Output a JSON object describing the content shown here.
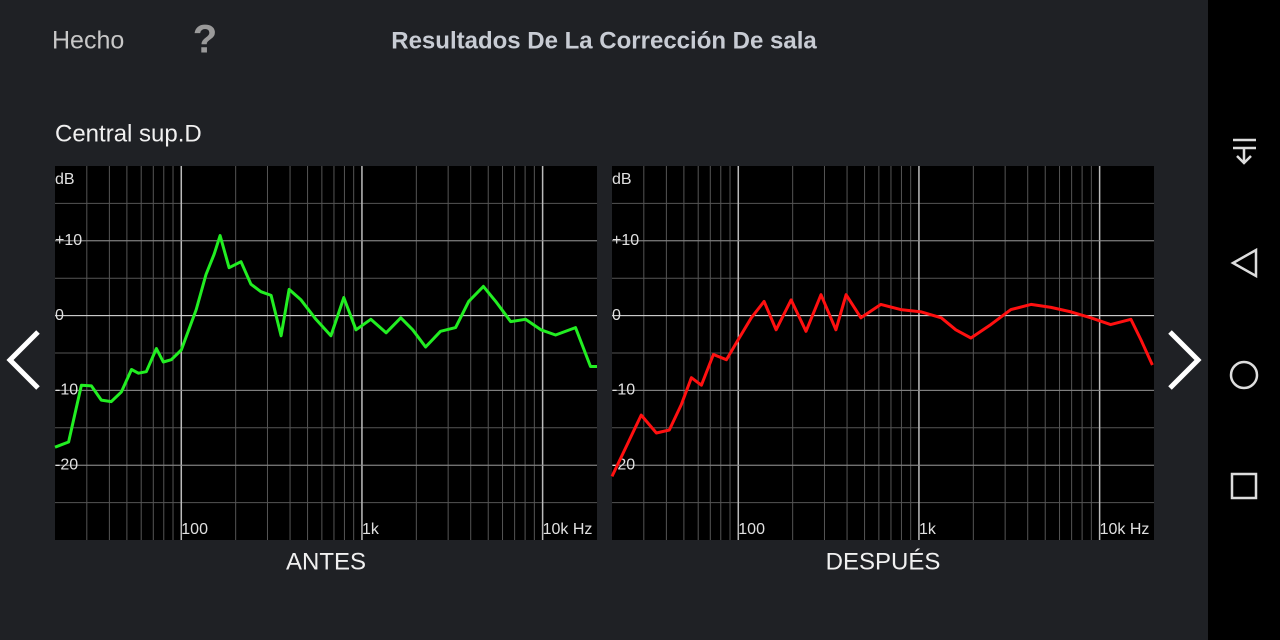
{
  "header": {
    "done": "Hecho",
    "help": "?",
    "title": "Resultados De La Corrección De sala"
  },
  "speaker": "Central sup.D",
  "chart_data": [
    {
      "type": "line",
      "title": "ANTES",
      "y_label": "dB",
      "color": "#22ee22",
      "x_scale": "log",
      "grid": true,
      "x": [
        20,
        23.8,
        28,
        31.8,
        36.1,
        41,
        46.6,
        53,
        57.9,
        64,
        72.8,
        79.5,
        88,
        100,
        121,
        137,
        152,
        164,
        184,
        214,
        243,
        276,
        314,
        357,
        395,
        460,
        556,
        673,
        794,
        927,
        1120,
        1360,
        1640,
        1910,
        2250,
        2720,
        3300,
        3900,
        4700,
        5500,
        6660,
        8040,
        9790,
        11800,
        15200,
        18400,
        20000
      ],
      "values": [
        -17.6,
        -16.9,
        -9.3,
        -9.4,
        -11.3,
        -11.5,
        -10.2,
        -7.2,
        -7.7,
        -7.5,
        -4.4,
        -6.2,
        -5.9,
        -4.6,
        0.8,
        5.5,
        8.2,
        10.7,
        6.4,
        7.2,
        4.2,
        3.2,
        2.7,
        -2.7,
        3.5,
        2.1,
        -0.5,
        -2.7,
        2.4,
        -1.9,
        -0.5,
        -2.3,
        -0.3,
        -1.9,
        -4.2,
        -2.1,
        -1.6,
        1.9,
        3.9,
        1.9,
        -0.8,
        -0.5,
        -1.9,
        -2.6,
        -1.6,
        -6.8,
        -6.8
      ],
      "xlim": [
        20,
        20000
      ],
      "ylim": [
        -30,
        20
      ],
      "xticks": [
        100,
        {
          "value": 1000,
          "label": "1k"
        },
        {
          "value": 10000,
          "label": "10k Hz"
        }
      ],
      "yticks": [
        {
          "value": 10,
          "label": "+10"
        },
        0,
        -10,
        -20
      ]
    },
    {
      "type": "line",
      "title": "DESPUÉS",
      "y_label": "dB",
      "color": "#ff1010",
      "x_scale": "log",
      "grid": true,
      "x": [
        20,
        24.2,
        29,
        35.2,
        41.5,
        48.4,
        55,
        62.5,
        72.8,
        86,
        100,
        118,
        139,
        162,
        196,
        237,
        287,
        347,
        395,
        477,
        616,
        794,
        1030,
        1330,
        1600,
        1940,
        2500,
        3230,
        4170,
        5380,
        6940,
        8950,
        11500,
        14900,
        16900,
        19600
      ],
      "values": [
        -21.5,
        -17.3,
        -13.3,
        -15.7,
        -15.3,
        -11.9,
        -8.3,
        -9.3,
        -5.2,
        -5.9,
        -3.2,
        -0.3,
        1.9,
        -1.9,
        2.1,
        -2.1,
        2.8,
        -1.9,
        2.8,
        -0.3,
        1.5,
        0.8,
        0.5,
        -0.3,
        -1.9,
        -3.0,
        -1.2,
        0.8,
        1.5,
        1.1,
        0.5,
        -0.3,
        -1.2,
        -0.5,
        -3.2,
        -6.6
      ],
      "xlim": [
        20,
        20000
      ],
      "ylim": [
        -30,
        20
      ],
      "xticks": [
        100,
        {
          "value": 1000,
          "label": "1k"
        },
        {
          "value": 10000,
          "label": "10k Hz"
        }
      ],
      "yticks": [
        {
          "value": 10,
          "label": "+10"
        },
        0,
        -10,
        -20
      ]
    }
  ]
}
